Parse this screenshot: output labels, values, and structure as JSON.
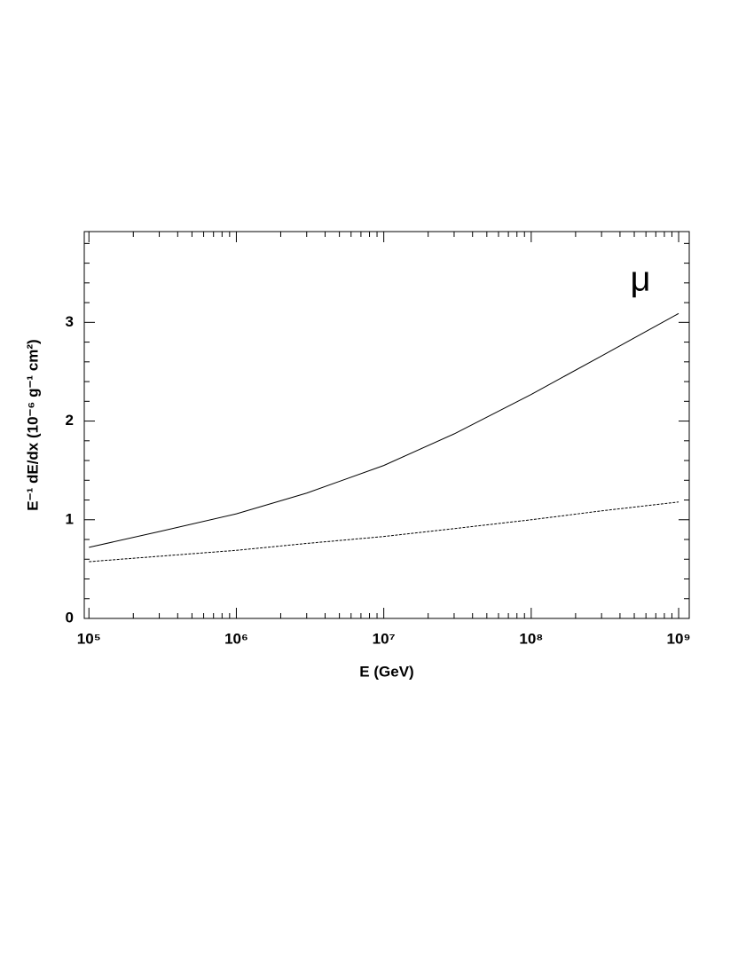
{
  "chart_data": {
    "type": "line",
    "xlabel": "E (GeV)",
    "ylabel": "E⁻¹ dE/dx (10⁻⁶ g⁻¹ cm²)",
    "annotation": "μ",
    "log_x": true,
    "x": [
      100000,
      300000,
      1000000,
      3000000,
      10000000,
      30000000,
      100000000,
      300000000,
      1000000000
    ],
    "series": [
      {
        "color": "#000000",
        "dash": "solid",
        "values": [
          0.72,
          0.88,
          1.06,
          1.27,
          1.55,
          1.87,
          2.27,
          2.66,
          3.09
        ]
      },
      {
        "color": "#000000",
        "dash": "dashed",
        "values": [
          0.575,
          0.63,
          0.69,
          0.76,
          0.83,
          0.91,
          1.0,
          1.09,
          1.18
        ]
      }
    ],
    "xlim": [
      93000,
      1180000000
    ],
    "xticks": [
      {
        "value": 100000,
        "label": "10⁵"
      },
      {
        "value": 1000000,
        "label": "10⁶"
      },
      {
        "value": 10000000,
        "label": "10⁷"
      },
      {
        "value": 100000000,
        "label": "10⁸"
      },
      {
        "value": 1000000000,
        "label": "10⁹"
      }
    ],
    "ylim": [
      0,
      3.92
    ],
    "yticks": [
      0,
      1,
      2,
      3
    ]
  }
}
